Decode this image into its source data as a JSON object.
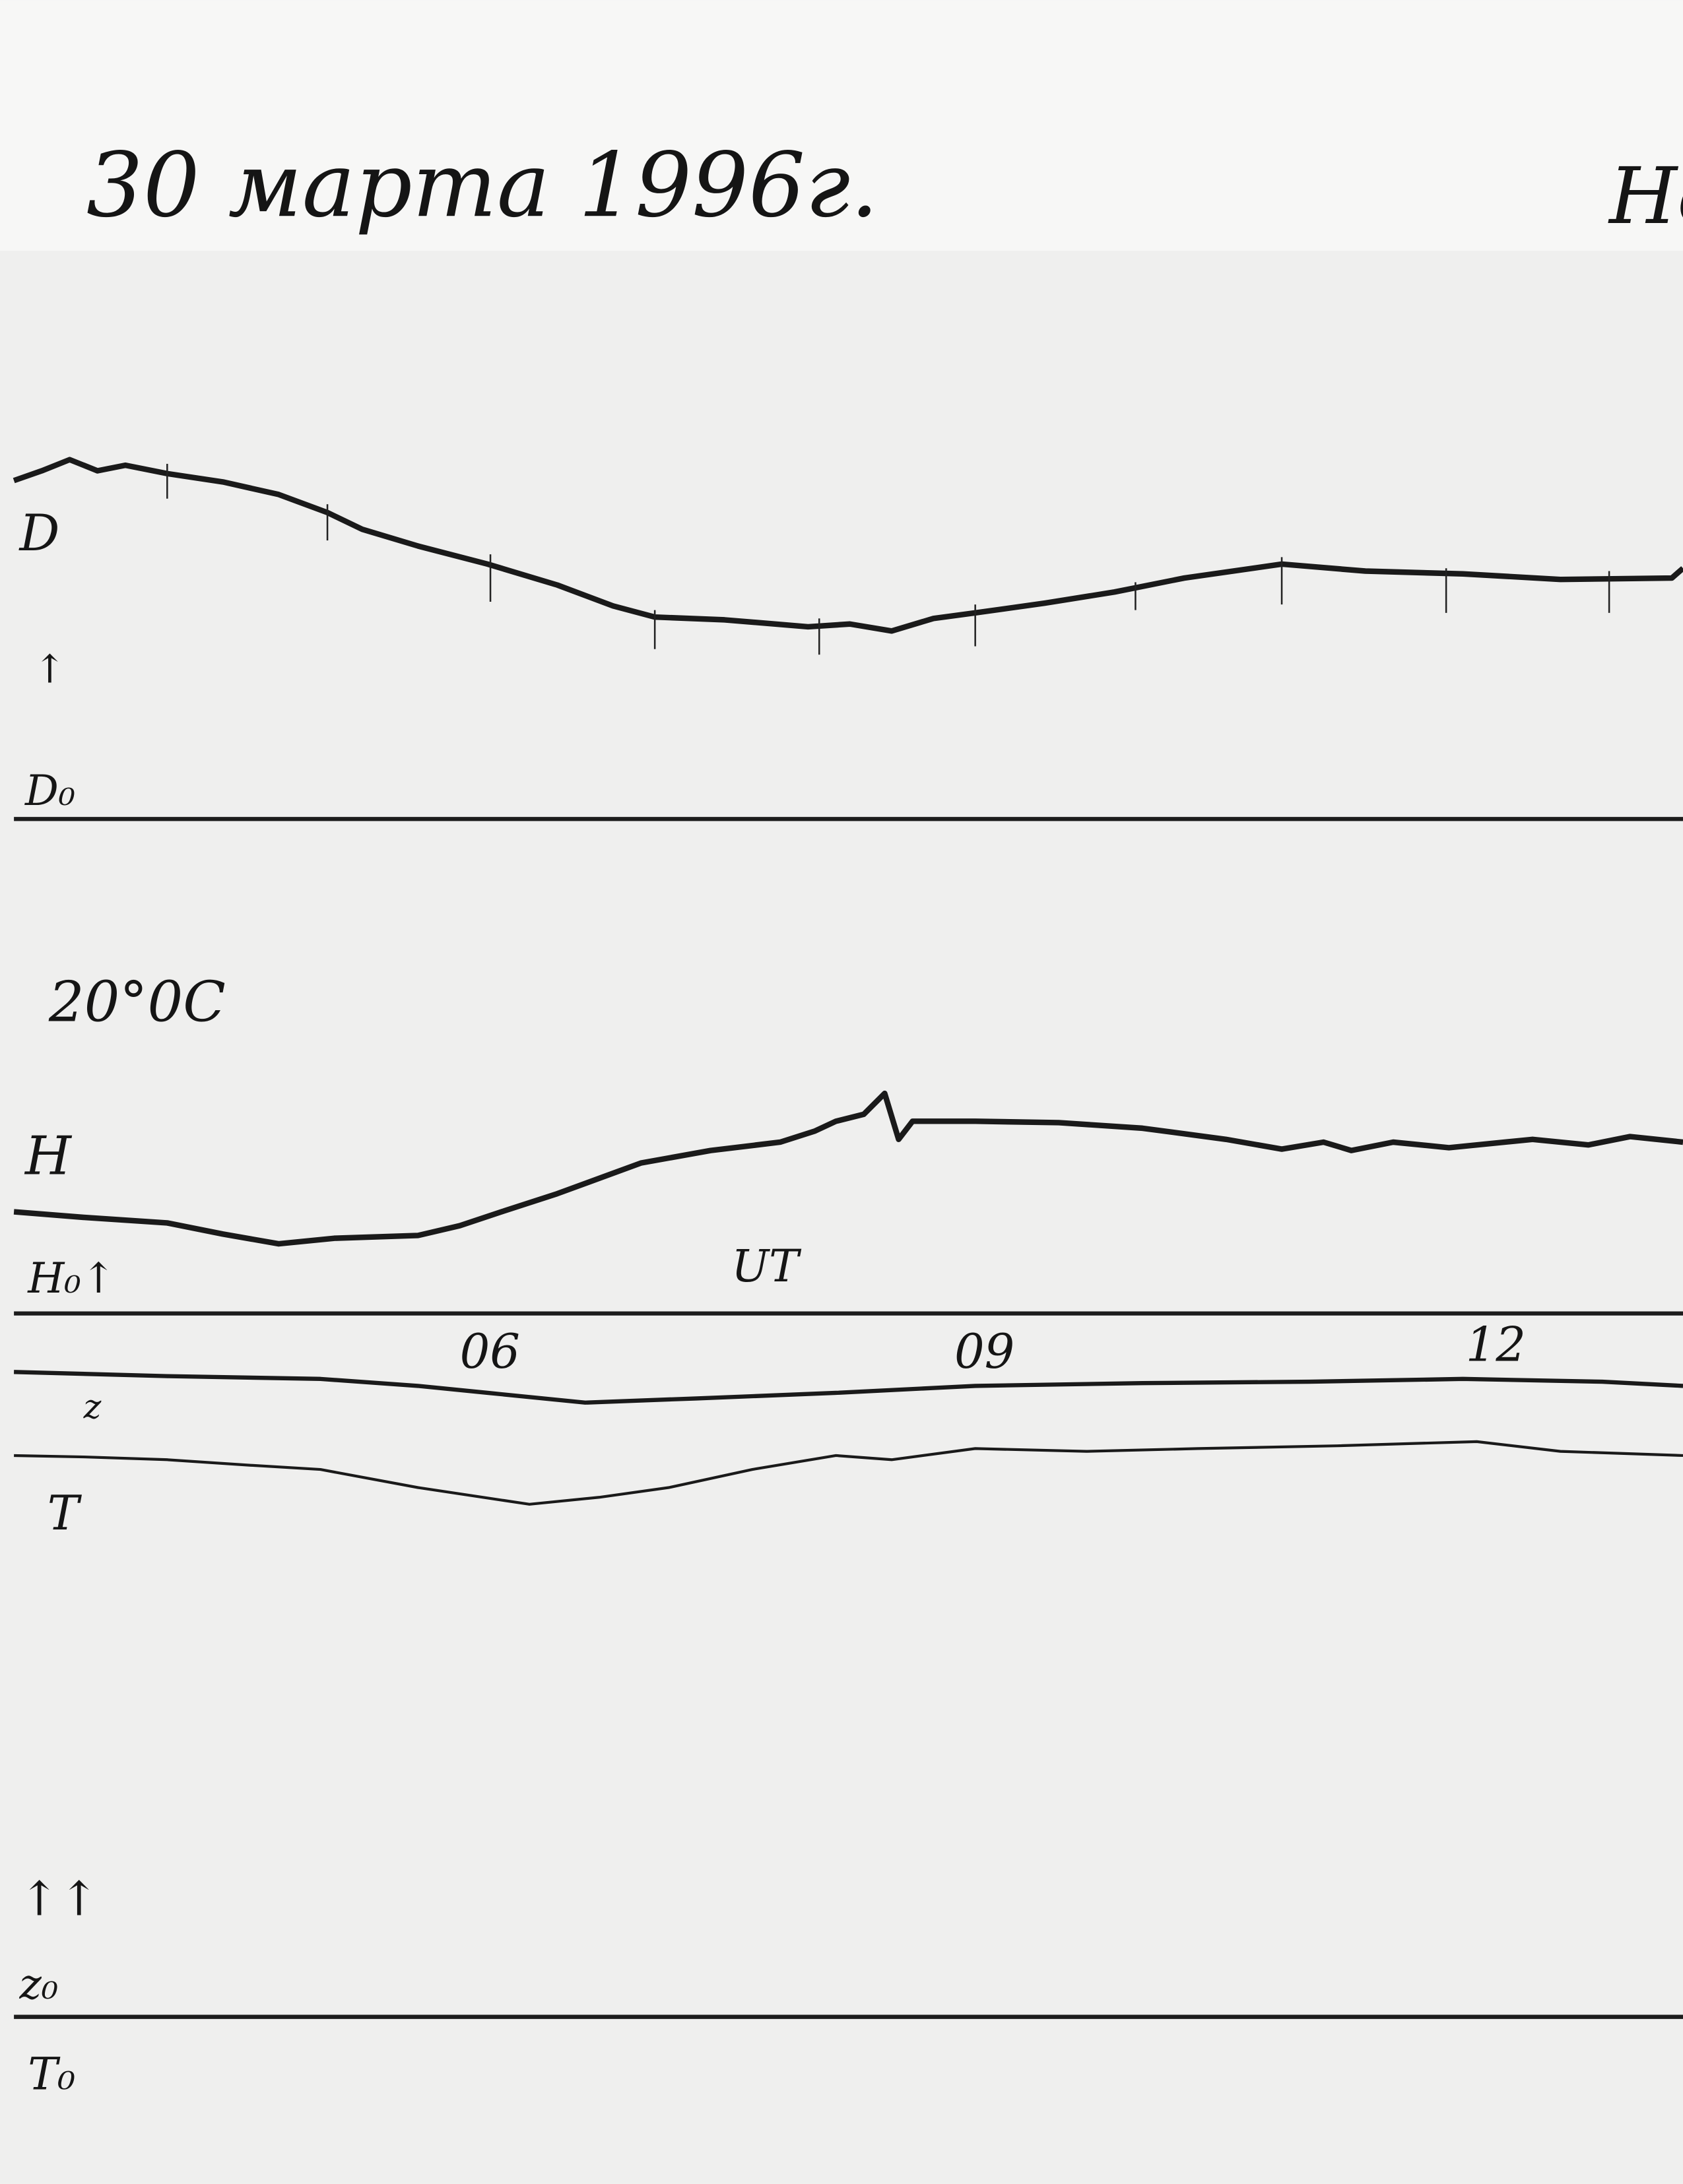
{
  "header": {
    "date": "30 марта 1996г.",
    "corner": "Но"
  },
  "d_panel": {
    "label": "D",
    "arrow": "↑",
    "baseline": "D₀"
  },
  "h_panel": {
    "temperature": "20°0C",
    "label": "H",
    "baseline": "H₀↑",
    "time_label": "UT"
  },
  "time_marks": [
    "06",
    "09",
    "12"
  ],
  "zt_panel": {
    "z_label": "z",
    "t_label": "T",
    "arrows": "↑↑",
    "z_baseline": "z₀",
    "t_baseline": "T₀"
  }
}
